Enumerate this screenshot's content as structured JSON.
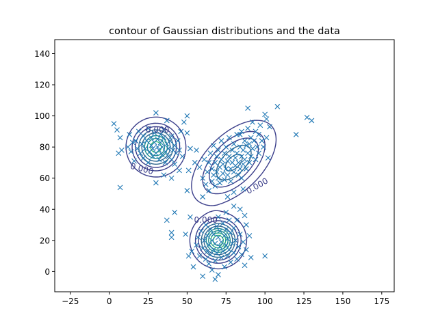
{
  "chart_data": {
    "type": "scatter",
    "title": "contour of Gaussian distributions and the data",
    "xlabel": "",
    "ylabel": "",
    "xlim": [
      -35,
      183
    ],
    "ylim": [
      -13,
      149
    ],
    "xticks": [
      -25,
      0,
      25,
      50,
      75,
      100,
      125,
      150,
      175
    ],
    "yticks": [
      0,
      20,
      40,
      60,
      80,
      100,
      120,
      140
    ],
    "grid": false,
    "marker": "x",
    "marker_color": "#1f77b4",
    "contour_colors": [
      "#3b3e8a",
      "#30678d",
      "#21918c",
      "#35b779"
    ],
    "gaussians": [
      {
        "mean": [
          30,
          80
        ],
        "sx": 7,
        "sy": 7,
        "rho": 0
      },
      {
        "mean": [
          80,
          70
        ],
        "sx": 11,
        "sy": 11,
        "rho": 0.55
      },
      {
        "mean": [
          70,
          20
        ],
        "sx": 6.5,
        "sy": 6.5,
        "rho": 0
      }
    ],
    "contour_labels": [
      "0.000",
      "0.000",
      "0.000",
      "0.000"
    ],
    "points": [
      [
        3,
        95
      ],
      [
        5,
        91
      ],
      [
        7,
        86
      ],
      [
        6,
        76
      ],
      [
        8,
        78
      ],
      [
        7,
        54
      ],
      [
        12,
        80
      ],
      [
        13,
        88
      ],
      [
        14,
        77
      ],
      [
        15,
        83
      ],
      [
        16,
        71
      ],
      [
        17,
        84
      ],
      [
        18,
        79
      ],
      [
        19,
        90
      ],
      [
        20,
        76
      ],
      [
        21,
        82
      ],
      [
        22,
        73
      ],
      [
        22,
        87
      ],
      [
        23,
        79
      ],
      [
        24,
        84
      ],
      [
        25,
        70
      ],
      [
        25,
        92
      ],
      [
        26,
        77
      ],
      [
        27,
        81
      ],
      [
        27,
        86
      ],
      [
        28,
        74
      ],
      [
        28,
        79
      ],
      [
        29,
        83
      ],
      [
        29,
        89
      ],
      [
        30,
        76
      ],
      [
        30,
        102
      ],
      [
        31,
        80
      ],
      [
        31,
        85
      ],
      [
        32,
        72
      ],
      [
        32,
        78
      ],
      [
        33,
        88
      ],
      [
        33,
        83
      ],
      [
        34,
        75
      ],
      [
        34,
        80
      ],
      [
        35,
        91
      ],
      [
        35,
        86
      ],
      [
        36,
        77
      ],
      [
        36,
        70
      ],
      [
        37,
        82
      ],
      [
        37,
        97
      ],
      [
        38,
        79
      ],
      [
        38,
        74
      ],
      [
        39,
        84
      ],
      [
        40,
        72
      ],
      [
        40,
        87
      ],
      [
        41,
        78
      ],
      [
        42,
        81
      ],
      [
        42,
        69
      ],
      [
        43,
        76
      ],
      [
        44,
        84
      ],
      [
        45,
        78
      ],
      [
        46,
        90
      ],
      [
        47,
        74
      ],
      [
        48,
        96
      ],
      [
        50,
        100
      ],
      [
        50,
        89
      ],
      [
        52,
        79
      ],
      [
        51,
        65
      ],
      [
        45,
        65
      ],
      [
        40,
        60
      ],
      [
        30,
        57
      ],
      [
        35,
        62
      ],
      [
        58,
        67
      ],
      [
        60,
        60
      ],
      [
        61,
        72
      ],
      [
        62,
        56
      ],
      [
        63,
        64
      ],
      [
        64,
        70
      ],
      [
        64,
        52
      ],
      [
        65,
        76
      ],
      [
        66,
        58
      ],
      [
        66,
        66
      ],
      [
        67,
        81
      ],
      [
        67,
        62
      ],
      [
        68,
        70
      ],
      [
        68,
        55
      ],
      [
        69,
        74
      ],
      [
        69,
        64
      ],
      [
        70,
        60
      ],
      [
        70,
        78
      ],
      [
        71,
        67
      ],
      [
        71,
        57
      ],
      [
        72,
        72
      ],
      [
        72,
        84
      ],
      [
        73,
        63
      ],
      [
        73,
        69
      ],
      [
        74,
        76
      ],
      [
        74,
        59
      ],
      [
        75,
        66
      ],
      [
        75,
        80
      ],
      [
        76,
        71
      ],
      [
        76,
        62
      ],
      [
        77,
        74
      ],
      [
        77,
        86
      ],
      [
        78,
        66
      ],
      [
        78,
        58
      ],
      [
        79,
        78
      ],
      [
        79,
        70
      ],
      [
        80,
        64
      ],
      [
        80,
        82
      ],
      [
        81,
        73
      ],
      [
        81,
        68
      ],
      [
        82,
        88
      ],
      [
        82,
        76
      ],
      [
        83,
        62
      ],
      [
        83,
        70
      ],
      [
        84,
        80
      ],
      [
        84,
        66
      ],
      [
        85,
        74
      ],
      [
        85,
        90
      ],
      [
        86,
        78
      ],
      [
        86,
        69
      ],
      [
        87,
        84
      ],
      [
        87,
        72
      ],
      [
        88,
        81
      ],
      [
        88,
        66
      ],
      [
        89,
        92
      ],
      [
        89,
        76
      ],
      [
        90,
        82
      ],
      [
        90,
        70
      ],
      [
        91,
        86
      ],
      [
        91,
        74
      ],
      [
        92,
        79
      ],
      [
        92,
        96
      ],
      [
        93,
        84
      ],
      [
        94,
        72
      ],
      [
        94,
        90
      ],
      [
        95,
        80
      ],
      [
        96,
        88
      ],
      [
        96,
        76
      ],
      [
        97,
        94
      ],
      [
        98,
        84
      ],
      [
        99,
        80
      ],
      [
        100,
        101
      ],
      [
        101,
        86
      ],
      [
        101,
        98
      ],
      [
        102,
        73
      ],
      [
        103,
        93
      ],
      [
        108,
        106
      ],
      [
        89,
        105
      ],
      [
        84,
        88
      ],
      [
        120,
        88
      ],
      [
        127,
        99
      ],
      [
        130,
        97
      ],
      [
        86,
        53
      ],
      [
        87,
        36
      ],
      [
        76,
        48
      ],
      [
        80,
        51
      ],
      [
        85,
        60
      ],
      [
        55,
        70
      ],
      [
        56,
        78
      ],
      [
        60,
        48
      ],
      [
        54,
        3
      ],
      [
        56,
        17
      ],
      [
        57,
        22
      ],
      [
        58,
        10
      ],
      [
        59,
        26
      ],
      [
        60,
        15
      ],
      [
        60,
        -3
      ],
      [
        61,
        20
      ],
      [
        62,
        8
      ],
      [
        62,
        30
      ],
      [
        63,
        13
      ],
      [
        63,
        23
      ],
      [
        64,
        5
      ],
      [
        64,
        17
      ],
      [
        65,
        27
      ],
      [
        65,
        11
      ],
      [
        66,
        20
      ],
      [
        66,
        1
      ],
      [
        67,
        14
      ],
      [
        67,
        24
      ],
      [
        68,
        7
      ],
      [
        68,
        18
      ],
      [
        68,
        -5
      ],
      [
        69,
        29
      ],
      [
        69,
        12
      ],
      [
        70,
        22
      ],
      [
        70,
        -2
      ],
      [
        71,
        16
      ],
      [
        71,
        26
      ],
      [
        72,
        9
      ],
      [
        72,
        19
      ],
      [
        73,
        31
      ],
      [
        73,
        13
      ],
      [
        74,
        23
      ],
      [
        74,
        3
      ],
      [
        75,
        17
      ],
      [
        75,
        27
      ],
      [
        76,
        10
      ],
      [
        76,
        21
      ],
      [
        77,
        33
      ],
      [
        77,
        14
      ],
      [
        78,
        25
      ],
      [
        78,
        6
      ],
      [
        79,
        18
      ],
      [
        80,
        12
      ],
      [
        80,
        28
      ],
      [
        81,
        20
      ],
      [
        82,
        8
      ],
      [
        82,
        33
      ],
      [
        83,
        16
      ],
      [
        84,
        24
      ],
      [
        85,
        11
      ],
      [
        86,
        19
      ],
      [
        87,
        4
      ],
      [
        88,
        14
      ],
      [
        88,
        30
      ],
      [
        90,
        23
      ],
      [
        91,
        9
      ],
      [
        100,
        10
      ],
      [
        53,
        13
      ],
      [
        52,
        35
      ],
      [
        50,
        52
      ],
      [
        51,
        10
      ],
      [
        49,
        24
      ],
      [
        40,
        22
      ],
      [
        37,
        33
      ],
      [
        42,
        38
      ],
      [
        40,
        25
      ],
      [
        70,
        35
      ],
      [
        75,
        38
      ],
      [
        80,
        42
      ],
      [
        84,
        40
      ]
    ]
  }
}
